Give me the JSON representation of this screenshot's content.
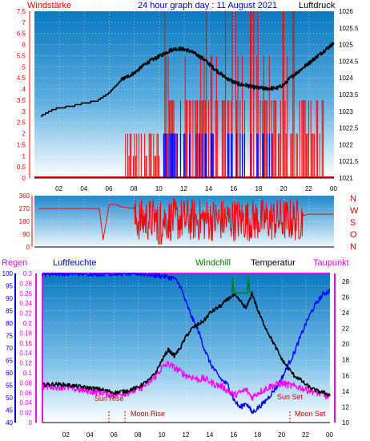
{
  "header": {
    "left_label": "Windstärke",
    "title": "24 hour graph day : 11 August 2021",
    "right_label": "Luftdruck"
  },
  "middle": {
    "direction_letters": [
      "N",
      "W",
      "S",
      "O",
      "N"
    ]
  },
  "bottom_header": {
    "regen": "Regen",
    "luftfeuchte": "Luftfeuchte",
    "windchill": "Windchill",
    "temperatur": "Temperatur",
    "taupunkt": "Taupunkt"
  },
  "annotations": {
    "sun_rise": "Sun Rise",
    "sun_set": "Sun Set",
    "moon_rise": "Moon Rise",
    "moon_set": "Moon Set"
  },
  "colors": {
    "wind": "#ff0000",
    "gust": "#0000ff",
    "pressure": "#000000",
    "direction": "#ff0000",
    "humidity": "#0000ff",
    "temperature": "#000000",
    "dewpoint": "#ff00ff",
    "windchill": "#008000",
    "rain": "#ff00ff"
  },
  "chart_data": [
    {
      "type": "line",
      "x_ticks": [
        "02",
        "04",
        "06",
        "08",
        "10",
        "12",
        "14",
        "16",
        "18",
        "20",
        "22",
        "00"
      ],
      "y_left_ticks": [
        "0",
        "0.5",
        "1",
        "1.5",
        "2",
        "2.5",
        "3",
        "3.5",
        "4",
        "4.5",
        "5",
        "5.5",
        "6",
        "6.5",
        "7",
        "7.5"
      ],
      "y_right_ticks": [
        "1021",
        "1021.5",
        "1022",
        "1022.5",
        "1023",
        "1023.5",
        "1024",
        "1024.5",
        "1025",
        "1025.5",
        "1026"
      ],
      "ylim_left": [
        0,
        7.5
      ],
      "ylim_right": [
        1021,
        1026
      ],
      "series": [
        {
          "name": "Luftdruck",
          "axis": "right",
          "x": [
            0.5,
            1.0,
            1.5,
            2.0,
            3.0,
            4.0,
            5.0,
            6.0,
            6.5,
            7.0,
            7.5,
            8.0,
            8.5,
            9.0,
            9.5,
            10.0,
            10.5,
            11.0,
            11.5,
            12.0,
            12.5,
            13.0,
            13.5,
            14.0,
            14.5,
            15.0,
            15.5,
            16.0,
            16.5,
            17.0,
            17.5,
            18.0,
            18.5,
            19.0,
            19.5,
            20.0,
            20.5,
            21.0,
            21.5,
            22.0,
            22.5,
            23.0,
            23.5,
            24.0
          ],
          "y": [
            1022.85,
            1022.95,
            1023.05,
            1023.1,
            1023.15,
            1023.25,
            1023.3,
            1023.55,
            1023.75,
            1023.95,
            1024.05,
            1024.15,
            1024.3,
            1024.45,
            1024.55,
            1024.65,
            1024.75,
            1024.85,
            1024.88,
            1024.86,
            1024.8,
            1024.7,
            1024.58,
            1024.42,
            1024.25,
            1024.1,
            1023.97,
            1023.87,
            1023.8,
            1023.78,
            1023.72,
            1023.7,
            1023.68,
            1023.69,
            1023.7,
            1023.8,
            1024.0,
            1024.15,
            1024.3,
            1024.45,
            1024.6,
            1024.75,
            1024.9,
            1025.05
          ]
        }
      ]
    },
    {
      "type": "line",
      "x_ticks": [
        "02",
        "04",
        "06",
        "08",
        "10",
        "12",
        "14",
        "16",
        "18",
        "20",
        "22",
        "00"
      ],
      "y_ticks": [
        "0",
        "90",
        "180",
        "270",
        "360"
      ],
      "ylim": [
        0,
        360
      ],
      "series": [
        {
          "name": "Windrichtung",
          "x": [
            0.3,
            2,
            4,
            5.2,
            5.5,
            6,
            6.5,
            7,
            8,
            9,
            10,
            11,
            12,
            13,
            14,
            15,
            16,
            17,
            18,
            19,
            20,
            21,
            22,
            24
          ],
          "y": [
            270,
            270,
            270,
            270,
            50,
            300,
            300,
            280,
            270,
            180,
            250,
            210,
            260,
            200,
            250,
            190,
            240,
            210,
            270,
            150,
            250,
            210,
            230,
            230
          ]
        }
      ]
    },
    {
      "type": "line",
      "x_ticks": [
        "02",
        "04",
        "06",
        "08",
        "10",
        "12",
        "14",
        "16",
        "18",
        "20",
        "22",
        "00"
      ],
      "y_humidity_ticks": [
        "40",
        "45",
        "50",
        "55",
        "60",
        "65",
        "70",
        "75",
        "80",
        "85",
        "90",
        "95",
        "100"
      ],
      "y_rain_ticks": [
        "0",
        "0.02",
        "0.04",
        "0.06",
        "0.08",
        "0.1",
        "0.12",
        "0.14",
        "0.16",
        "0.18",
        "0.2",
        "0.22",
        "0.24",
        "0.26",
        "0.28",
        "0.3"
      ],
      "y_temp_ticks": [
        "10",
        "12",
        "14",
        "16",
        "18",
        "20",
        "22",
        "24",
        "26",
        "28"
      ],
      "series": [
        {
          "name": "Luftfeuchte",
          "axis": "humidity",
          "x": [
            0,
            8,
            9,
            10,
            11,
            11.5,
            12,
            12.5,
            13,
            13.5,
            14,
            14.5,
            15,
            15.5,
            16,
            16.5,
            17,
            17.5,
            18,
            18.5,
            19,
            19.5,
            20,
            20.5,
            21,
            21.5,
            22,
            22.5,
            23,
            23.5,
            24
          ],
          "y": [
            100,
            100,
            99.5,
            99,
            98,
            95,
            88,
            82,
            77,
            70,
            64,
            60,
            57,
            55,
            49,
            46,
            48,
            44,
            46,
            48,
            51,
            54,
            58,
            63,
            68,
            74,
            80,
            85,
            89,
            92,
            93
          ]
        },
        {
          "name": "Temperatur",
          "axis": "temp",
          "x": [
            0,
            1,
            2,
            3,
            4,
            5,
            6,
            7,
            8,
            9,
            9.5,
            10,
            10.5,
            11,
            11.5,
            12,
            12.5,
            13,
            13.5,
            14,
            14.5,
            15,
            15.5,
            16,
            16.5,
            17,
            17.5,
            18,
            18.5,
            19,
            19.5,
            20,
            20.5,
            21,
            21.5,
            22,
            22.5,
            23,
            23.5,
            24
          ],
          "y": [
            14.8,
            14.9,
            14.8,
            14.6,
            14.4,
            14.2,
            13.8,
            14.0,
            14.5,
            15.5,
            16.5,
            18.0,
            19.3,
            18.5,
            19.5,
            21.0,
            22.0,
            22.5,
            23.0,
            24.0,
            24.5,
            25.0,
            25.8,
            26.2,
            25.5,
            24.5,
            26.5,
            24.2,
            22.5,
            21.0,
            19.5,
            18.0,
            17.0,
            16.0,
            15.5,
            14.8,
            14.3,
            14.0,
            13.8,
            13.5
          ]
        },
        {
          "name": "Taupunkt",
          "axis": "temp",
          "x": [
            0,
            1,
            2,
            3,
            4,
            5,
            6,
            7,
            8,
            9,
            9.5,
            10,
            10.5,
            11,
            11.5,
            12,
            12.5,
            13,
            13.5,
            14,
            14.5,
            15,
            15.5,
            16,
            16.5,
            17,
            17.5,
            18,
            18.5,
            19,
            19.5,
            20,
            20.5,
            21,
            21.5,
            22,
            22.5,
            23,
            23.5,
            24
          ],
          "y": [
            14.6,
            14.6,
            14.5,
            14.2,
            14.0,
            13.8,
            13.5,
            13.8,
            14.2,
            15.2,
            16.0,
            17.0,
            17.5,
            17.0,
            16.5,
            16.0,
            15.8,
            15.5,
            15.6,
            15.2,
            14.8,
            14.6,
            14.0,
            13.5,
            13.8,
            14.2,
            13.2,
            13.8,
            14.2,
            14.6,
            14.8,
            15.0,
            14.8,
            14.6,
            14.5,
            14.2,
            14.0,
            13.8,
            13.5,
            13.2
          ]
        },
        {
          "name": "Windchill",
          "axis": "temp",
          "x": [
            15.8,
            15.9,
            16.0,
            17.1,
            17.2,
            17.3
          ],
          "y": [
            26.5,
            28.5,
            26.5,
            26.5,
            28.5,
            26.5
          ]
        },
        {
          "name": "Regen",
          "axis": "rain",
          "x": [
            0,
            24
          ],
          "y": [
            0.3,
            0.3
          ]
        }
      ]
    }
  ]
}
